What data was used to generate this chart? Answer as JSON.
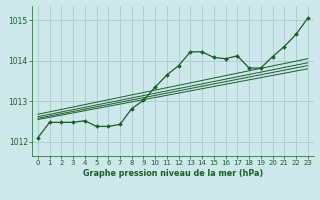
{
  "title": "Graphe pression niveau de la mer (hPa)",
  "background_color": "#cce8e8",
  "grid_color": "#aacccc",
  "line_color": "#1a5c2a",
  "xlim": [
    -0.5,
    23.5
  ],
  "ylim": [
    1011.65,
    1015.35
  ],
  "yticks": [
    1012,
    1013,
    1014,
    1015
  ],
  "xticks": [
    0,
    1,
    2,
    3,
    4,
    5,
    6,
    7,
    8,
    9,
    10,
    11,
    12,
    13,
    14,
    15,
    16,
    17,
    18,
    19,
    20,
    21,
    22,
    23
  ],
  "main_series": [
    1012.1,
    1012.48,
    1012.48,
    1012.48,
    1012.52,
    1012.38,
    1012.38,
    1012.43,
    1012.82,
    1013.02,
    1013.35,
    1013.65,
    1013.88,
    1014.22,
    1014.22,
    1014.08,
    1014.05,
    1014.12,
    1013.82,
    1013.82,
    1014.1,
    1014.35,
    1014.65,
    1015.05
  ],
  "trend_lines": [
    [
      1012.55,
      1013.8
    ],
    [
      1012.58,
      1013.88
    ],
    [
      1012.62,
      1013.95
    ],
    [
      1012.68,
      1014.05
    ]
  ],
  "trend_x": [
    0,
    23
  ]
}
